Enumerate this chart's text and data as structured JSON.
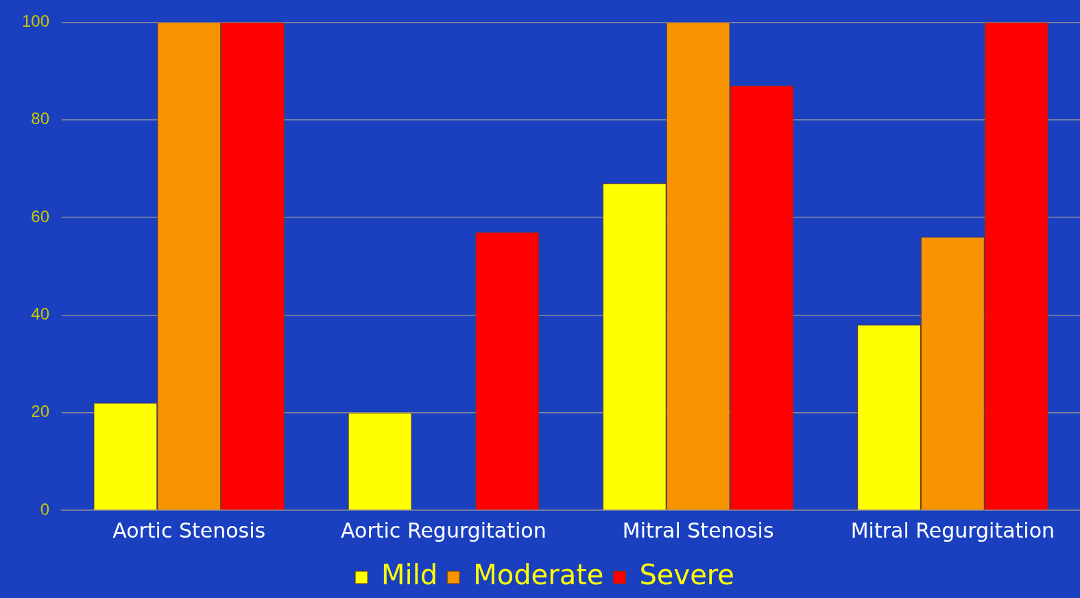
{
  "chart_data": {
    "type": "bar",
    "categories": [
      "Aortic Stenosis",
      "Aortic Regurgitation",
      "Mitral Stenosis",
      "Mitral Regurgitation"
    ],
    "series": [
      {
        "name": "Mild",
        "color": "#ffff00",
        "values": [
          22,
          20,
          67,
          38
        ]
      },
      {
        "name": "Moderate",
        "color": "#f79400",
        "values": [
          100,
          0,
          100,
          56
        ]
      },
      {
        "name": "Severe",
        "color": "#ff0000",
        "values": [
          100,
          57,
          87,
          100
        ]
      }
    ],
    "ylim": [
      0,
      100
    ],
    "yticks": [
      0,
      20,
      40,
      60,
      80,
      100
    ],
    "grid": "y",
    "legend": "bottom"
  }
}
